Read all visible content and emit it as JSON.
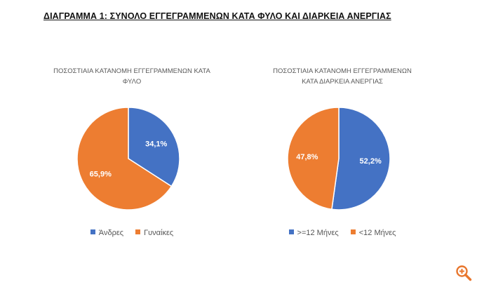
{
  "page": {
    "title": "ΔΙΑΓΡΑΜΜΑ 1: ΣΥΝΟΛΟ ΕΓΓΕΓΡΑΜΜΕΝΩΝ ΚΑΤΑ ΦΥΛΟ ΚΑΙ ΔΙΑΡΚΕΙΑ ΑΝΕΡΓΙΑΣ"
  },
  "zoom": {
    "icon": "zoom-in-icon",
    "color": "#e8762d"
  },
  "chart_data": [
    {
      "type": "pie",
      "title_lines": [
        "ΠΟΣΟΣΤΙΑΙΑ ΚΑΤΑΝΟΜΗ ΕΓΓΕΓΡΑΜΜΕΝΩΝ ΚΑΤΑ",
        "ΦΥΛΟ"
      ],
      "slices": [
        {
          "label": "Άνδρες",
          "value": 34.1,
          "display": "34,1%",
          "color": "#4472c4"
        },
        {
          "label": "Γυναίκες",
          "value": 65.9,
          "display": "65,9%",
          "color": "#ed7d31"
        }
      ],
      "start_angle_deg": 0,
      "direction": "clockwise",
      "legend_position": "bottom"
    },
    {
      "type": "pie",
      "title_lines": [
        "ΠΟΣΟΣΤΙΑΙΑ ΚΑΤΑΝΟΜΗ ΕΓΓΕΓΡΑΜΜΕΝΩΝ",
        "ΚΑΤΑ ΔΙΑΡΚΕΙΑ ΑΝΕΡΓΙΑΣ"
      ],
      "slices": [
        {
          "label": ">=12 Μήνες",
          "value": 52.2,
          "display": "52,2%",
          "color": "#4472c4"
        },
        {
          "label": "<12 Μήνες",
          "value": 47.8,
          "display": "47,8%",
          "color": "#ed7d31"
        }
      ],
      "start_angle_deg": 0,
      "direction": "clockwise",
      "legend_position": "bottom"
    }
  ]
}
